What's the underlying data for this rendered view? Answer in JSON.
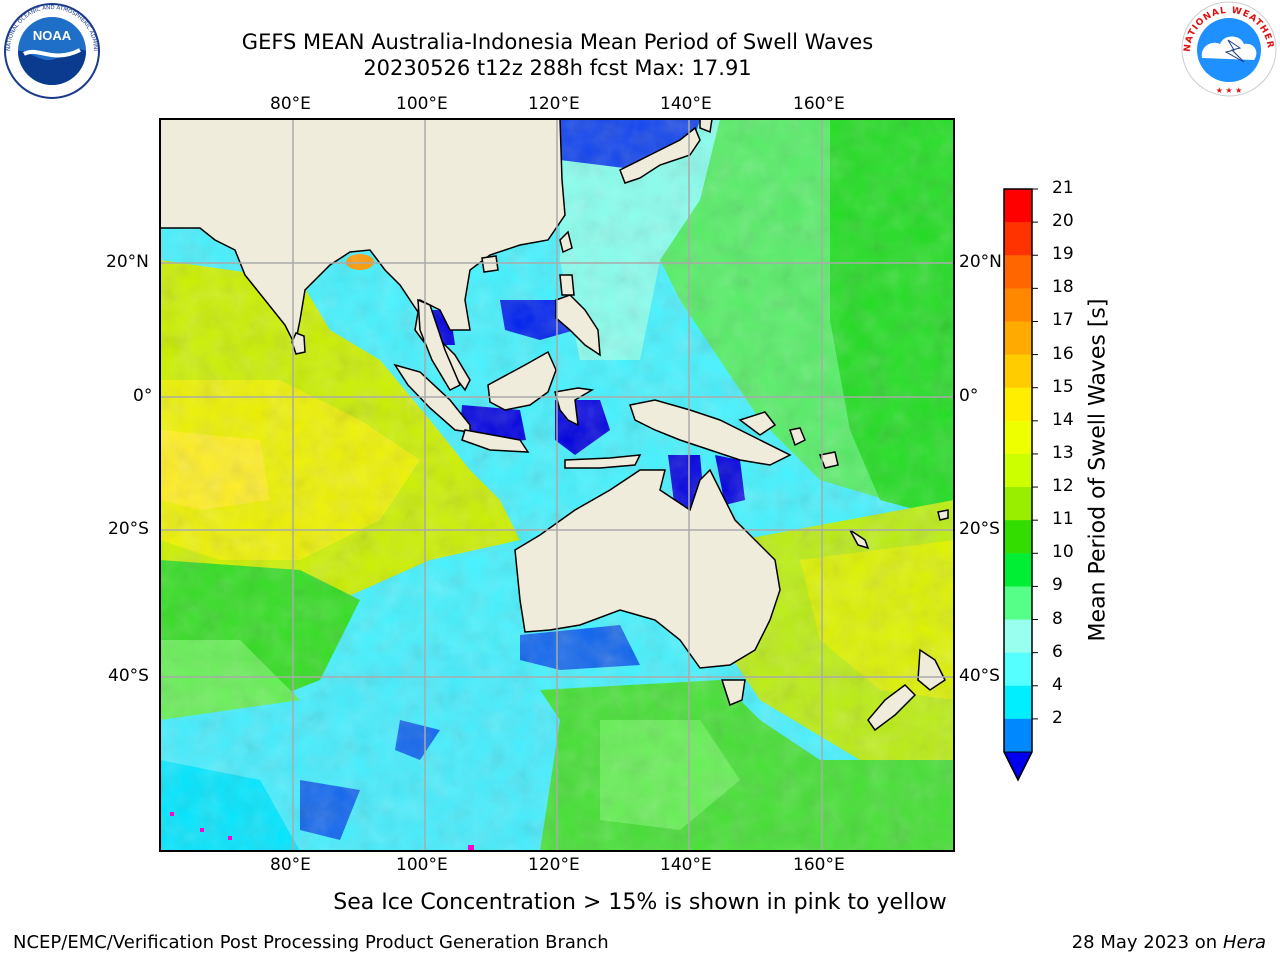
{
  "header": {
    "title_line1": "GEFS MEAN Australia-Indonesia Mean Period of Swell Waves",
    "title_line2": "20230526 t12z 288h fcst   Max: 17.91"
  },
  "logos": {
    "left": {
      "icon": "noaa-logo",
      "text": "NOAA",
      "ring_text": "NATIONAL OCEANIC AND ATMOSPHERIC ADMINISTRATION · U.S. DEPARTMENT OF COMMERCE"
    },
    "right": {
      "icon": "nws-logo",
      "ring_text": "NATIONAL WEATHER SERVICE"
    }
  },
  "map": {
    "lon_labels": [
      "80°E",
      "100°E",
      "120°E",
      "140°E",
      "160°E"
    ],
    "lat_labels": [
      "20°N",
      "0°",
      "20°S",
      "40°S"
    ],
    "colors": {
      "land": "#efecdc",
      "grid": "#aaaaaa"
    }
  },
  "colorbar": {
    "label": "Mean Period of Swell Waves [s]",
    "ticks": [
      "21",
      "20",
      "19",
      "18",
      "17",
      "16",
      "15",
      "14",
      "13",
      "12",
      "11",
      "10",
      "9",
      "8",
      "6",
      "4",
      "2"
    ],
    "colors": [
      "#ff0000",
      "#ff3300",
      "#ff6600",
      "#ff8800",
      "#ffaa00",
      "#ffcc00",
      "#ffee00",
      "#eeff00",
      "#ccff00",
      "#99ee00",
      "#33dd00",
      "#00ee33",
      "#55ff88",
      "#99ffee",
      "#55ffff",
      "#00eeff",
      "#0088ff"
    ],
    "extend_color": "#0000ee"
  },
  "footer": {
    "note": "Sea Ice Concentration > 15% is shown in pink to yellow",
    "credit": "NCEP/EMC/Verification Post Processing Product Generation Branch",
    "date": "28 May 2023 on",
    "host": "Hera"
  }
}
